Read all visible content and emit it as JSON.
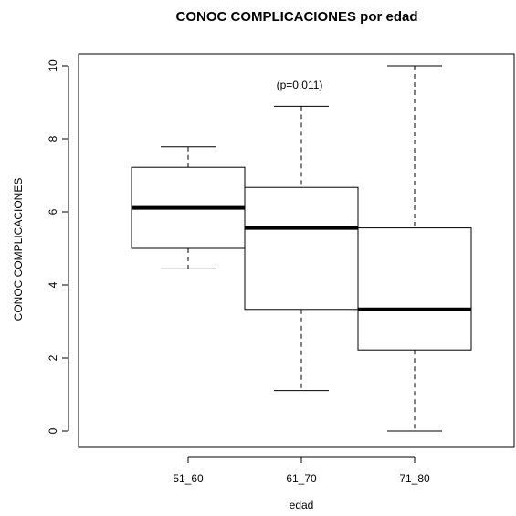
{
  "chart_data": {
    "type": "boxplot",
    "title": "CONOC COMPLICACIONES por edad",
    "xlabel": "edad",
    "ylabel": "CONOC COMPLICACIONES",
    "ylim": [
      0,
      10
    ],
    "yticks": [
      "0",
      "2",
      "4",
      "6",
      "8",
      "10"
    ],
    "categories": [
      "51_60",
      "61_70",
      "71_80"
    ],
    "boxes": [
      {
        "category": "51_60",
        "whisker_low": 4.44,
        "q1": 5.0,
        "median": 6.11,
        "q3": 7.22,
        "whisker_high": 7.78
      },
      {
        "category": "61_70",
        "whisker_low": 1.11,
        "q1": 3.33,
        "median": 5.56,
        "q3": 6.67,
        "whisker_high": 8.89
      },
      {
        "category": "71_80",
        "whisker_low": 0.0,
        "q1": 2.22,
        "median": 3.33,
        "q3": 5.56,
        "whisker_high": 10.0
      }
    ],
    "annotation": "(p=0.011)",
    "grid": false
  }
}
